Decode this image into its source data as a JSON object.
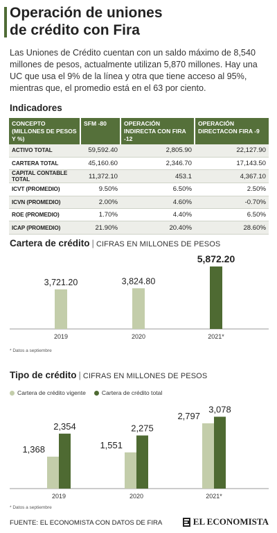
{
  "header": {
    "title_line1": "Operación de uniones",
    "title_line2": "de crédito con Fira",
    "intro": "Las Uniones de Crédito cuentan con un saldo máximo de 8,540 millones de pesos, actualmente utilizan 5,870 millones. Hay una UC que usa el 9% de la línea y otra que tiene acceso al 95%, mientras que, el promedio está en el 63 por ciento."
  },
  "indicators": {
    "heading": "Indicadores",
    "columns": [
      "CONCEPTO (MILLONES DE PESOS Y %)",
      "SFM -80",
      "OPERACIÓN INDIRECTA CON FIRA -12",
      "OPERACIÓN DIRECTACON FIRA -9"
    ],
    "rows": [
      [
        "ACTIVO TOTAL",
        "59,592.40",
        "2,805.90",
        "22,127.90"
      ],
      [
        "CARTERA TOTAL",
        "45,160.60",
        "2,346.70",
        "17,143.50"
      ],
      [
        "CAPITAL CONTABLE TOTAL",
        "11,372.10",
        "453.1",
        "4,367.10"
      ],
      [
        "ICVT (PROMEDIO)",
        "9.50%",
        "6.50%",
        "2.50%"
      ],
      [
        "ICVN (PROMEDIO)",
        "2.00%",
        "4.60%",
        "-0.70%"
      ],
      [
        "ROE (PROMEDIO)",
        "1.70%",
        "4.40%",
        "6.50%"
      ],
      [
        "ICAP (PROMEDIO)",
        "21.90%",
        "20.40%",
        "28.60%"
      ]
    ]
  },
  "chart_data": [
    {
      "type": "bar",
      "title": "Cartera de crédito",
      "subtitle": "CIFRAS EN MILLONES DE PESOS",
      "categories": [
        "2019",
        "2020",
        "2021*"
      ],
      "values": [
        3721.2,
        3824.8,
        5872.2
      ],
      "value_labels": [
        "3,721.20",
        "3,824.80",
        "5,872.20"
      ],
      "bar_colors": [
        "#c3cdaa",
        "#c3cdaa",
        "#4e6a32"
      ],
      "ylim": [
        0,
        6000
      ],
      "grid": false,
      "note": "* Datos a septiembre"
    },
    {
      "type": "bar",
      "title": "Tipo de crédito",
      "subtitle": "CIFRAS EN MILLONES DE PESOS",
      "categories": [
        "2019",
        "2020",
        "2021*"
      ],
      "series": [
        {
          "name": "Cartera de crédito vigente",
          "values": [
            1368,
            1551,
            2797
          ],
          "labels": [
            "1,368",
            "1,551",
            "2,797"
          ],
          "color": "#c3cdaa"
        },
        {
          "name": "Cartera de crédito total",
          "values": [
            2354,
            2275,
            3078
          ],
          "labels": [
            "2,354",
            "2,275",
            "3,078"
          ],
          "color": "#4e6a32"
        }
      ],
      "legend": "top-left",
      "ylim": [
        0,
        3300
      ],
      "grid": false,
      "note": "* Datos a septiembre"
    }
  ],
  "footer": {
    "source": "FUENTE: EL ECONOMISTA CON DATOS DE FIRA",
    "brand": "EL ECONOMISTA"
  }
}
